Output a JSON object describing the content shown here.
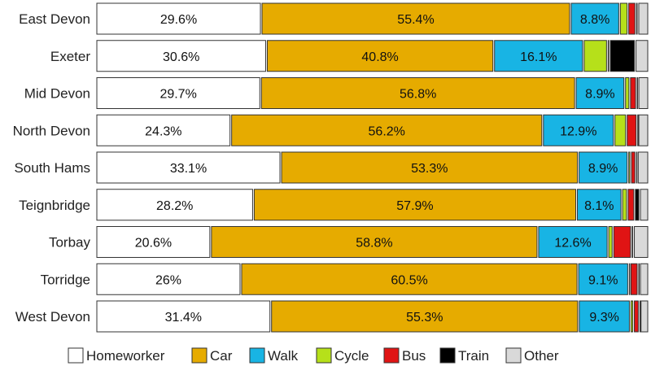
{
  "chart_data": {
    "type": "bar",
    "orientation": "horizontal",
    "stacked": true,
    "categories": [
      "East Devon",
      "Exeter",
      "Mid Devon",
      "North Devon",
      "South Hams",
      "Teignbridge",
      "Torbay",
      "Torridge",
      "West Devon"
    ],
    "series": [
      {
        "name": "Homeworker",
        "color": "#ffffff",
        "values": [
          29.6,
          30.6,
          29.7,
          24.3,
          33.1,
          28.2,
          20.6,
          26.0,
          31.4
        ]
      },
      {
        "name": "Car",
        "color": "#e6ab00",
        "values": [
          55.4,
          40.8,
          56.8,
          56.2,
          53.3,
          57.9,
          58.8,
          60.5,
          55.3
        ]
      },
      {
        "name": "Walk",
        "color": "#18b4e4",
        "values": [
          8.8,
          16.1,
          8.9,
          12.9,
          8.9,
          8.1,
          12.6,
          9.1,
          9.3
        ]
      },
      {
        "name": "Cycle",
        "color": "#b6e01a",
        "values": [
          1.5,
          4.3,
          0.9,
          2.2,
          0.5,
          1.0,
          0.9,
          0.3,
          0.6
        ]
      },
      {
        "name": "Bus",
        "color": "#e01414",
        "values": [
          1.4,
          0.4,
          1.2,
          1.9,
          0.9,
          1.3,
          3.3,
          1.4,
          1.0
        ]
      },
      {
        "name": "Train",
        "color": "#000000",
        "values": [
          0.4,
          4.6,
          0.3,
          0.2,
          0.3,
          0.9,
          0.4,
          0.3,
          0.2
        ]
      },
      {
        "name": "Other",
        "color": "#d9d9d9",
        "values": [
          1.9,
          2.4,
          1.9,
          1.9,
          2.0,
          1.6,
          2.7,
          1.6,
          1.5
        ]
      }
    ],
    "data_labels": [
      [
        "29.6%",
        "55.4%",
        "8.8%",
        "",
        "",
        "",
        ""
      ],
      [
        "30.6%",
        "40.8%",
        "16.1%",
        "",
        "",
        "",
        ""
      ],
      [
        "29.7%",
        "56.8%",
        "8.9%",
        "",
        "",
        "",
        ""
      ],
      [
        "24.3%",
        "56.2%",
        "12.9%",
        "",
        "",
        "",
        ""
      ],
      [
        "33.1%",
        "53.3%",
        "8.9%",
        "",
        "",
        "",
        ""
      ],
      [
        "28.2%",
        "57.9%",
        "8.1%",
        "",
        "",
        "",
        ""
      ],
      [
        "20.6%",
        "58.8%",
        "12.6%",
        "",
        "",
        "",
        ""
      ],
      [
        "26%",
        "60.5%",
        "9.1%",
        "",
        "",
        "",
        ""
      ],
      [
        "31.4%",
        "55.3%",
        "9.3%",
        "",
        "",
        "",
        ""
      ]
    ],
    "xlim": [
      0,
      100
    ],
    "legend_position": "bottom",
    "grid": false,
    "title": "",
    "xlabel": "",
    "ylabel": ""
  }
}
